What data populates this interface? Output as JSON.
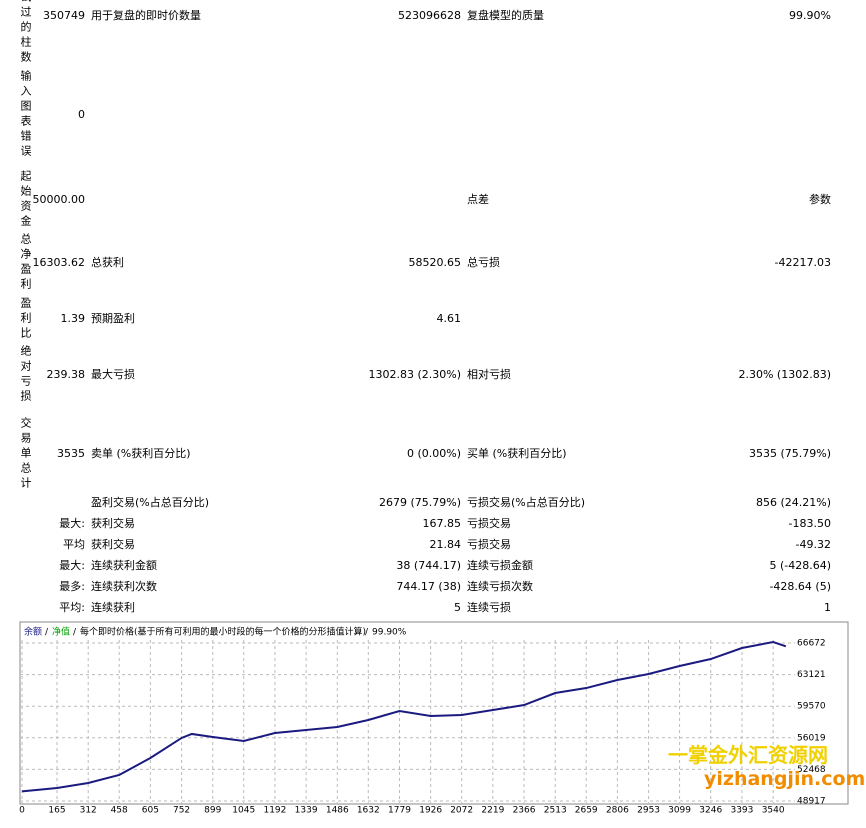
{
  "report": {
    "rows": [
      {
        "header": "试过的柱数",
        "value": "350749",
        "label1": "用于复盘的即时价数量",
        "value1": "523096628",
        "label2": "复盘模型的质量",
        "value2": "99.90%"
      },
      {
        "header": "输入图表错误",
        "value": "0"
      },
      {
        "header": "起始资金",
        "value": "50000.00",
        "label2": "点差",
        "value2": "参数"
      },
      {
        "header": "总净盈利",
        "value": "16303.62",
        "label1": "总获利",
        "value1": "58520.65",
        "label2": "总亏损",
        "value2": "-42217.03"
      },
      {
        "header": "盈利比",
        "value": "1.39",
        "label1": "预期盈利",
        "value1": "4.61"
      },
      {
        "header": "绝对亏损",
        "value": "239.38",
        "label1": "最大亏损",
        "value1": "1302.83 (2.30%)",
        "label2": "相对亏损",
        "value2": "2.30% (1302.83)"
      },
      {
        "header": "交易单总计",
        "value": "3535",
        "label1": "卖单 (%获利百分比)",
        "value1": "0 (0.00%)",
        "label2": "买单 (%获利百分比)",
        "value2": "3535 (75.79%)"
      },
      {
        "label1": "盈利交易(%占总百分比)",
        "value1": "2679 (75.79%)",
        "label2": "亏损交易(%占总百分比)",
        "value2": "856 (24.21%)"
      },
      {
        "header": "最大:",
        "label1": "获利交易",
        "value1": "167.85",
        "label2": "亏损交易",
        "value2": "-183.50"
      },
      {
        "header": "平均",
        "label1": "获利交易",
        "value1": "21.84",
        "label2": "亏损交易",
        "value2": "-49.32"
      },
      {
        "header": "最大:",
        "label1": "连续获利金额",
        "value1": "38 (744.17)",
        "label2": "连续亏损金额",
        "value2": "5 (-428.64)"
      },
      {
        "header": "最多:",
        "label1": "连续获利次数",
        "value1": "744.17 (38)",
        "label2": "连续亏损次数",
        "value2": "-428.64 (5)"
      },
      {
        "header": "平均:",
        "label1": "连续获利",
        "value1": "5",
        "label2": "连续亏损",
        "value2": "1"
      }
    ]
  },
  "chart_data": {
    "type": "line",
    "equity_label": "净值",
    "equity_color": "#00a000",
    "separator": "/",
    "model": "每个即时价格(基于所有可利用的最小时段的每一个价格的分形插值计算)",
    "quality": "99.90%",
    "x": [
      0,
      165,
      312,
      458,
      605,
      752,
      800,
      899,
      1045,
      1192,
      1339,
      1486,
      1632,
      1779,
      1926,
      2072,
      2219,
      2366,
      2513,
      2659,
      2806,
      2953,
      3099,
      3246,
      3393,
      3540,
      3600
    ],
    "series": [
      {
        "name": "余额",
        "color": "#1a1a80",
        "values": [
          50000,
          50380,
          50940,
          51840,
          53750,
          56000,
          56450,
          56110,
          55660,
          56560,
          56900,
          57230,
          58020,
          59030,
          58470,
          58580,
          59140,
          59700,
          61050,
          61610,
          62510,
          63190,
          64090,
          64870,
          66110,
          66780,
          66300
        ]
      }
    ],
    "xlim": [
      0,
      3643
    ],
    "ylim": [
      48692,
      68357
    ],
    "xticks": [
      0,
      165,
      312,
      458,
      605,
      752,
      899,
      1045,
      1192,
      1339,
      1486,
      1632,
      1779,
      1926,
      2072,
      2219,
      2366,
      2513,
      2659,
      2806,
      2953,
      3099,
      3246,
      3393,
      3540
    ],
    "yticks": [
      48917,
      52468,
      56019,
      59570,
      63121,
      66672
    ],
    "grid": true
  },
  "watermark": {
    "title": "一掌金外汇资源网",
    "url": "yizhangjin.com"
  }
}
